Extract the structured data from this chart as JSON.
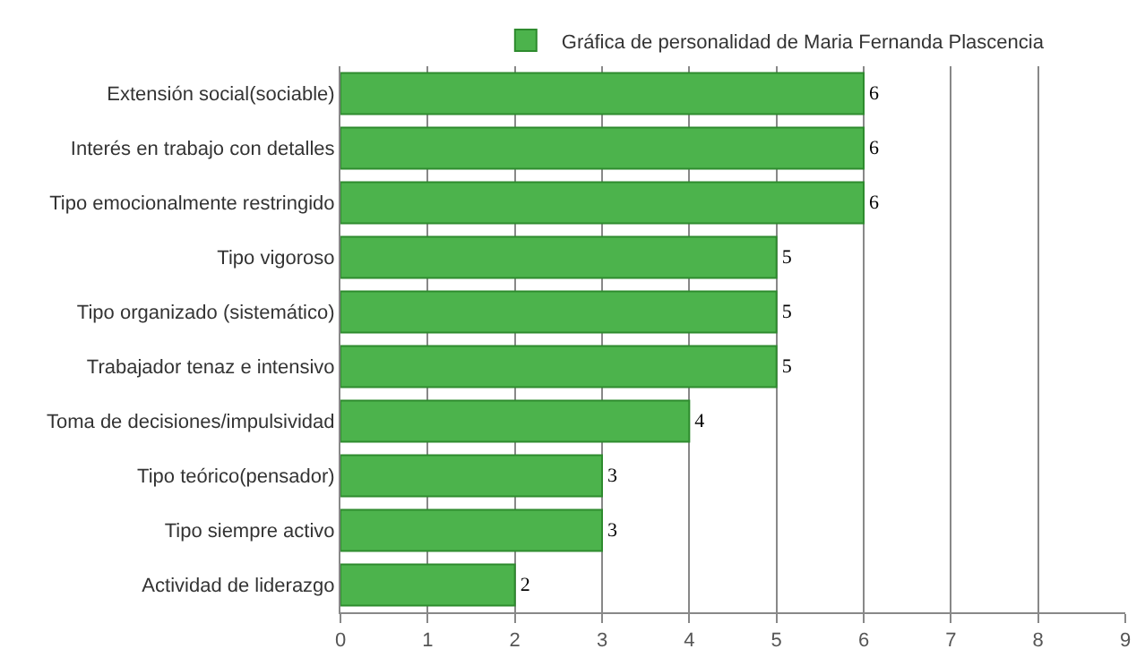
{
  "chart_data": {
    "type": "bar",
    "orientation": "horizontal",
    "categories": [
      "Extensión social(sociable)",
      "Interés en trabajo con detalles",
      "Tipo emocionalmente restringido",
      "Tipo vigoroso",
      "Tipo organizado (sistemático)",
      "Trabajador tenaz e intensivo",
      "Toma de decisiones/impulsividad",
      "Tipo teórico(pensador)",
      "Tipo siempre activo",
      "Actividad de liderazgo"
    ],
    "series": [
      {
        "name": "Gráfica de personalidad de Maria Fernanda Plascencia",
        "color": "#4cb34c",
        "values": [
          6,
          6,
          6,
          5,
          5,
          5,
          4,
          3,
          3,
          2
        ]
      }
    ],
    "xlim": [
      0,
      9
    ],
    "xticks": [
      0,
      1,
      2,
      3,
      4,
      5,
      6,
      7,
      8,
      9
    ],
    "grid": "x",
    "legend": "top",
    "data_labels": true
  }
}
